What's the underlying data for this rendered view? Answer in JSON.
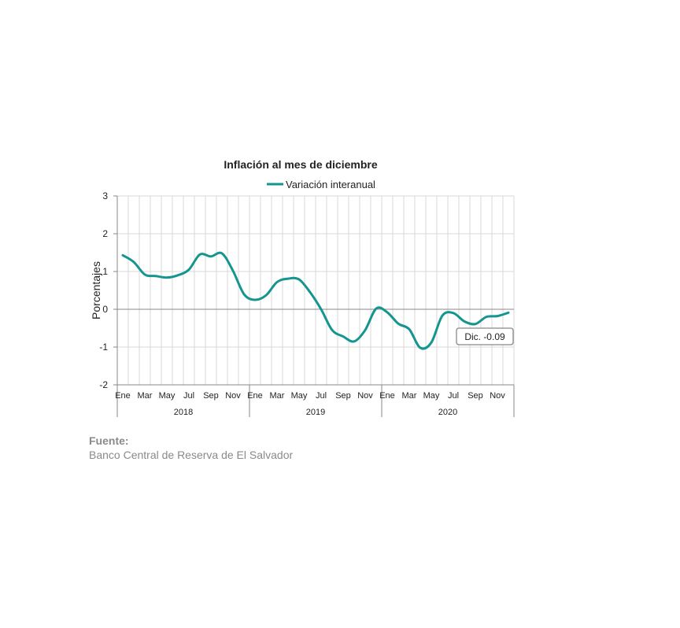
{
  "chart_data": {
    "type": "line",
    "title": "Inflación al mes de diciembre",
    "ylabel": "Porcentajes",
    "xlabel": "",
    "ylim": [
      -2,
      3
    ],
    "yticks": [
      -2,
      -1,
      0,
      1,
      2,
      3
    ],
    "grid": true,
    "legend_position": "top",
    "month_tick_labels": [
      "Ene",
      "",
      "Mar",
      "",
      "May",
      "",
      "Jul",
      "",
      "Sep",
      "",
      "Nov",
      ""
    ],
    "years": [
      "2018",
      "2019",
      "2020"
    ],
    "series": [
      {
        "name": "Variación interanual",
        "color": "#15958f",
        "values": [
          1.43,
          1.25,
          0.92,
          0.88,
          0.84,
          0.9,
          1.05,
          1.45,
          1.4,
          1.48,
          1.02,
          0.4,
          0.25,
          0.37,
          0.72,
          0.81,
          0.79,
          0.45,
          0.0,
          -0.55,
          -0.72,
          -0.85,
          -0.55,
          0.02,
          -0.08,
          -0.38,
          -0.53,
          -1.02,
          -0.88,
          -0.17,
          -0.1,
          -0.32,
          -0.39,
          -0.2,
          -0.18,
          -0.09
        ]
      }
    ],
    "annotation": "Dic. -0.09"
  },
  "source": {
    "label": "Fuente:",
    "text": "Banco Central de Reserva de El Salvador"
  }
}
